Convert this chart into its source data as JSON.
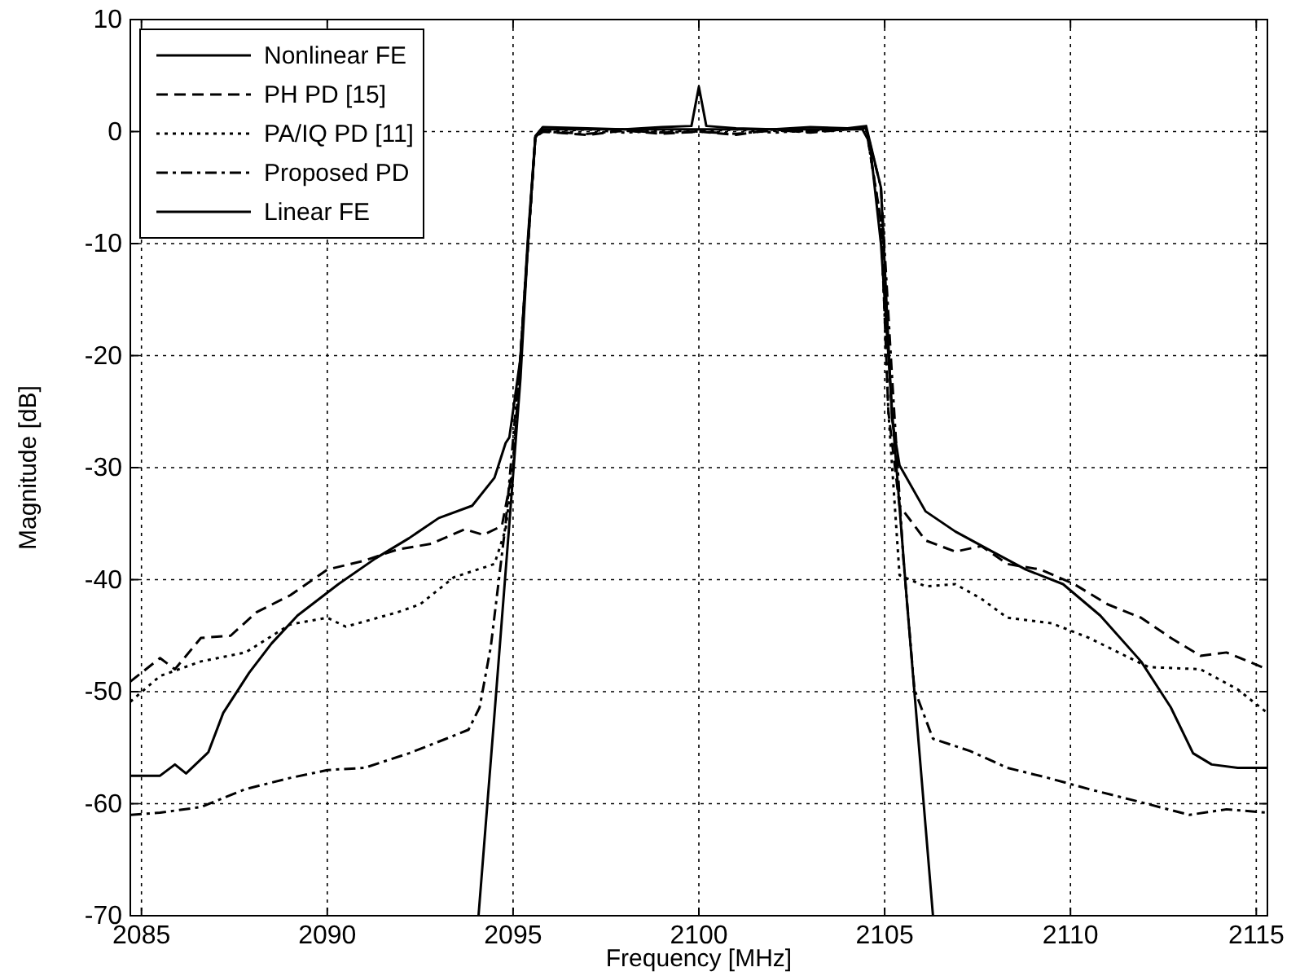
{
  "chart_data": {
    "type": "line",
    "xlabel": "Frequency [MHz]",
    "ylabel": "Magnitude [dB]",
    "xlim": [
      2084.7,
      2115.3
    ],
    "ylim": [
      -70,
      10
    ],
    "xticks": [
      2085,
      2090,
      2095,
      2100,
      2105,
      2110,
      2115
    ],
    "yticks": [
      -70,
      -60,
      -50,
      -40,
      -30,
      -20,
      -10,
      0,
      10
    ],
    "grid": true,
    "legend": "top left",
    "marker": "none",
    "series": [
      {
        "name": "Nonlinear FE",
        "color": "#000000",
        "line_style": "solid",
        "x": [
          2084.7,
          2085.5,
          2085.9,
          2086.2,
          2086.8,
          2087.2,
          2087.9,
          2088.5,
          2089.2,
          2090.3,
          2091.3,
          2092.2,
          2093.0,
          2093.9,
          2094.5,
          2094.8,
          2094.9,
          2095.2,
          2095.4,
          2095.6,
          2095.8,
          2097,
          2098,
          2099,
          2099.8,
          2100,
          2100.2,
          2101,
          2102,
          2103,
          2104,
          2104.5,
          2104.9,
          2105.2,
          2105.4,
          2106.1,
          2106.9,
          2107.9,
          2108.8,
          2109.8,
          2110.8,
          2111.9,
          2112.7,
          2113.3,
          2113.8,
          2114.5,
          2115.3
        ],
        "values": [
          -57.5,
          -57.5,
          -56.5,
          -57.3,
          -55.4,
          -51.9,
          -48.3,
          -45.7,
          -43.2,
          -40.4,
          -38.1,
          -36.3,
          -34.5,
          -33.4,
          -30.9,
          -27.8,
          -27.3,
          -20.2,
          -9.5,
          -0.4,
          0.4,
          0.3,
          0.2,
          0.4,
          0.5,
          4,
          0.5,
          0.3,
          0.2,
          0.4,
          0.3,
          0.5,
          -5,
          -25.7,
          -29.8,
          -33.9,
          -35.7,
          -37.5,
          -39.1,
          -40.4,
          -43.2,
          -47.3,
          -51.4,
          -55.5,
          -56.5,
          -56.8,
          -56.8
        ]
      },
      {
        "name": "PH PD [15]",
        "color": "#000000",
        "line_style": "dashed",
        "x": [
          2084.7,
          2085.5,
          2085.9,
          2086.6,
          2087.4,
          2088.1,
          2089.0,
          2090.0,
          2091.0,
          2091.9,
          2092.8,
          2093.7,
          2094.2,
          2094.7,
          2095.0,
          2095.3,
          2095.6,
          2095.8,
          2097,
          2098,
          2099,
          2100,
          2101,
          2102,
          2103,
          2104,
          2104.5,
          2104.9,
          2105.1,
          2105.4,
          2106.1,
          2106.9,
          2107.6,
          2108.3,
          2109.2,
          2110.1,
          2111.0,
          2111.9,
          2112.7,
          2113.5,
          2114.2,
          2115.3
        ],
        "values": [
          -49.1,
          -47,
          -48,
          -45.2,
          -45,
          -42.9,
          -41.4,
          -39.1,
          -38.3,
          -37.3,
          -36.8,
          -35.5,
          -36,
          -35.2,
          -30,
          -15,
          -0.5,
          0,
          -0.3,
          0.1,
          -0.2,
          0,
          -0.3,
          0.2,
          -0.1,
          0.2,
          0.3,
          -8,
          -25,
          -33.4,
          -36.5,
          -37.5,
          -37,
          -38.6,
          -39.1,
          -40.4,
          -42.2,
          -43.4,
          -45.2,
          -46.8,
          -46.5,
          -48
        ]
      },
      {
        "name": "PA/IQ PD [11]",
        "color": "#000000",
        "line_style": "dotted",
        "x": [
          2084.7,
          2085.5,
          2086.6,
          2087.8,
          2089.0,
          2090.0,
          2090.5,
          2091.9,
          2092.5,
          2093.4,
          2094.5,
          2094.8,
          2095.0,
          2095.3,
          2095.6,
          2095.8,
          2097,
          2098,
          2099,
          2100,
          2101,
          2102,
          2103,
          2104,
          2104.5,
          2104.9,
          2105.1,
          2105.4,
          2106.1,
          2106.9,
          2107.6,
          2108.3,
          2109.5,
          2110.5,
          2111.6,
          2112.1,
          2113.5,
          2114.5,
          2115.3
        ],
        "values": [
          -50.9,
          -48.6,
          -47.3,
          -46.5,
          -44,
          -43.4,
          -44.2,
          -42.9,
          -42.2,
          -39.8,
          -38.6,
          -35.5,
          -30,
          -15,
          -0.5,
          0,
          0.2,
          -0.1,
          0.1,
          0,
          0.2,
          -0.1,
          0.1,
          0.2,
          0.3,
          -8,
          -25,
          -39.6,
          -40.6,
          -40.4,
          -41.7,
          -43.4,
          -43.9,
          -45.2,
          -47,
          -47.8,
          -48,
          -49.8,
          -51.9
        ]
      },
      {
        "name": "Proposed PD",
        "color": "#000000",
        "line_style": "dashdot",
        "x": [
          2084.7,
          2085.5,
          2086.6,
          2087.8,
          2089.0,
          2090.0,
          2091.0,
          2092.2,
          2093.2,
          2093.8,
          2094.1,
          2094.4,
          2094.8,
          2095.2,
          2095.6,
          2095.8,
          2097,
          2098,
          2099,
          2100,
          2101,
          2102,
          2103,
          2104,
          2104.5,
          2104.9,
          2105.2,
          2105.5,
          2105.8,
          2106.3,
          2107.3,
          2108.3,
          2109.4,
          2110.5,
          2111.7,
          2113.2,
          2114.2,
          2115.3
        ],
        "values": [
          -61,
          -60.8,
          -60.3,
          -58.7,
          -57.7,
          -57,
          -56.8,
          -55.5,
          -54.2,
          -53.4,
          -51.4,
          -46,
          -35,
          -20,
          -0.5,
          0,
          -0.2,
          0.1,
          -0.1,
          0,
          -0.2,
          0.1,
          0,
          0.2,
          0.3,
          -5,
          -22,
          -38,
          -49.8,
          -54.2,
          -55.3,
          -56.8,
          -57.7,
          -58.7,
          -59.7,
          -61,
          -60.5,
          -60.8
        ]
      },
      {
        "name": "Linear FE",
        "color": "#000000",
        "line_style": "solid",
        "x": [
          2094.07,
          2094.5,
          2094.9,
          2095.2,
          2095.4,
          2095.6,
          2095.8,
          2100,
          2104.4,
          2104.6,
          2104.9,
          2105.2,
          2105.6,
          2106.0,
          2106.3
        ],
        "values": [
          -70,
          -52,
          -35,
          -22,
          -10,
          -0.5,
          0.2,
          0.2,
          0.2,
          -1,
          -10,
          -25,
          -42,
          -58,
          -70
        ]
      }
    ]
  }
}
